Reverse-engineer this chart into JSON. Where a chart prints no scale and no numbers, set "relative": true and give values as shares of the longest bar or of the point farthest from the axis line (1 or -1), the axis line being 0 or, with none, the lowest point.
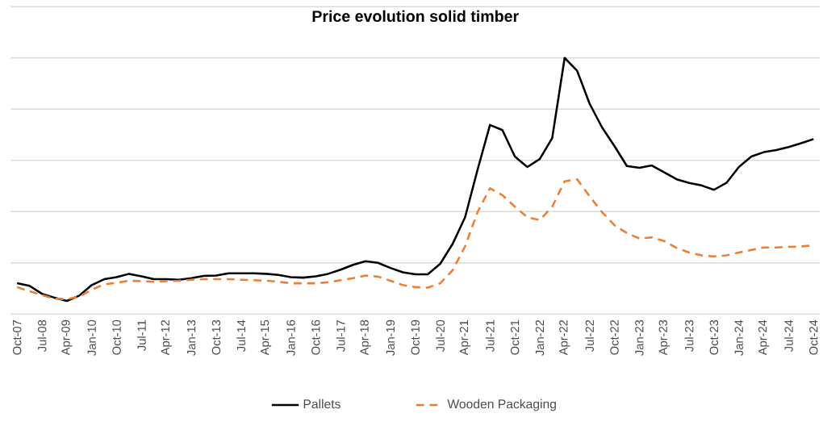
{
  "chart_data": {
    "type": "line",
    "title": "**Price evolution solid timber**",
    "relative": true,
    "grid": "y",
    "legend": "bottom",
    "categories": [
      "Oct-07",
      null,
      "Jul-08",
      null,
      "Apr-09",
      null,
      "Jan-10",
      null,
      "Oct-10",
      null,
      "Jul-11",
      null,
      "Apr-12",
      null,
      "Jan-13",
      null,
      "Oct-13",
      null,
      "Jul-14",
      null,
      "Apr-15",
      null,
      "Jan-16",
      null,
      "Oct-16",
      null,
      "Jul-17",
      null,
      "Apr-18",
      null,
      "Jan-19",
      null,
      "Oct-19",
      null,
      "Jul-20",
      null,
      "Apr-21",
      null,
      "Jul-21",
      null,
      "Oct-21",
      null,
      "Jan-22",
      null,
      "Apr-22",
      null,
      "Jul-22",
      null,
      "Oct-22",
      null,
      "Jan-23",
      null,
      "Apr-23",
      null,
      "Jul-23",
      null,
      "Oct-23",
      null,
      "Jan-24",
      null,
      "Apr-24",
      null,
      "Jul-24",
      null,
      "Oct-24"
    ],
    "series": [
      {
        "name": "Pallets",
        "color": "#000000",
        "line_style": "solid",
        "values": [
          0.12,
          0.11,
          0.079,
          0.064,
          0.051,
          0.072,
          0.113,
          0.136,
          0.144,
          0.157,
          0.147,
          0.136,
          0.136,
          0.134,
          0.14,
          0.149,
          0.15,
          0.159,
          0.159,
          0.159,
          0.157,
          0.153,
          0.144,
          0.142,
          0.147,
          0.157,
          0.173,
          0.192,
          0.206,
          0.2,
          0.18,
          0.163,
          0.155,
          0.155,
          0.196,
          0.274,
          0.378,
          0.563,
          0.738,
          0.718,
          0.615,
          0.574,
          0.605,
          0.687,
          1.0,
          0.95,
          0.822,
          0.729,
          0.656,
          0.578,
          0.571,
          0.58,
          0.553,
          0.526,
          0.512,
          0.502,
          0.485,
          0.512,
          0.574,
          0.615,
          0.632,
          0.64,
          0.652,
          0.667,
          0.683
        ]
      },
      {
        "name": "Wooden Packaging",
        "color": "#ed7d31",
        "line_style": "dashed",
        "values": [
          0.105,
          0.089,
          0.074,
          0.06,
          0.058,
          0.068,
          0.095,
          0.116,
          0.122,
          0.13,
          0.128,
          0.126,
          0.128,
          0.13,
          0.134,
          0.136,
          0.136,
          0.136,
          0.134,
          0.132,
          0.13,
          0.126,
          0.12,
          0.12,
          0.12,
          0.124,
          0.132,
          0.14,
          0.15,
          0.146,
          0.13,
          0.113,
          0.105,
          0.103,
          0.12,
          0.171,
          0.264,
          0.398,
          0.491,
          0.464,
          0.419,
          0.378,
          0.367,
          0.419,
          0.518,
          0.526,
          0.46,
          0.398,
          0.347,
          0.316,
          0.295,
          0.299,
          0.285,
          0.258,
          0.24,
          0.229,
          0.225,
          0.229,
          0.24,
          0.25,
          0.26,
          0.26,
          0.262,
          0.264,
          0.268
        ]
      }
    ]
  }
}
